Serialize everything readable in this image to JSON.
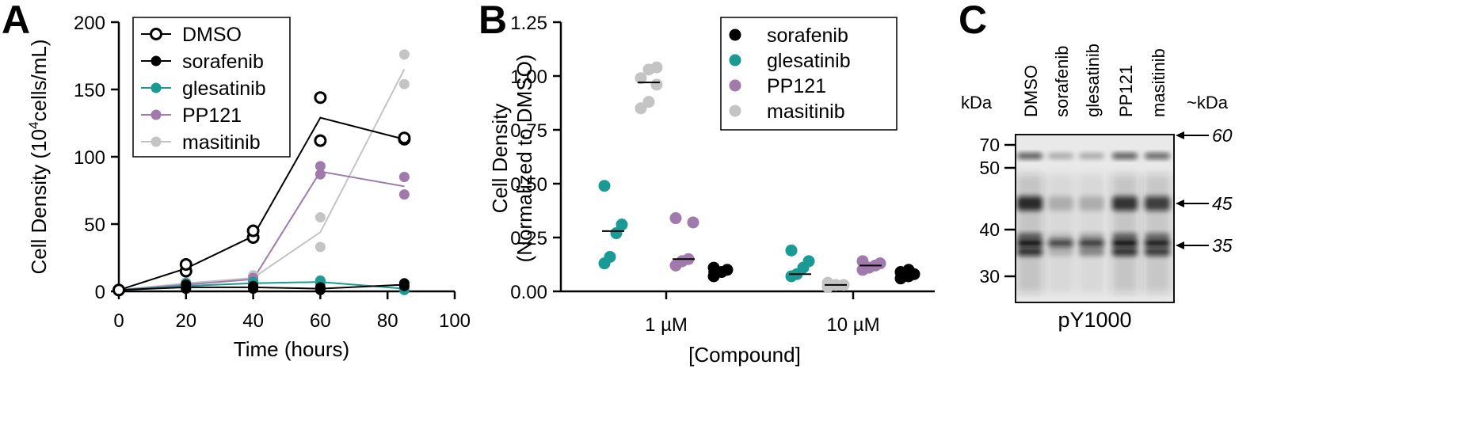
{
  "chart_data": [
    {
      "panel": "A",
      "type": "line",
      "xlabel": "Time (hours)",
      "ylabel_pre": "Cell Density (10",
      "ylabel_sup": "4",
      "ylabel_post": "cells/mL)",
      "xlim": [
        0,
        100
      ],
      "ylim": [
        0,
        200
      ],
      "xticks": [
        0,
        20,
        40,
        60,
        80,
        100
      ],
      "yticks": [
        0,
        50,
        100,
        150,
        200
      ],
      "legend_position": "top-left",
      "series": [
        {
          "name": "DMSO",
          "color": "#000000",
          "marker": "open-circle",
          "mean": [
            [
              0,
              1
            ],
            [
              20,
              17
            ],
            [
              40,
              41
            ],
            [
              60,
              129
            ],
            [
              85,
              113
            ]
          ],
          "points": [
            [
              0,
              1
            ],
            [
              20,
              15
            ],
            [
              20,
              20
            ],
            [
              40,
              40
            ],
            [
              40,
              45
            ],
            [
              60,
              112
            ],
            [
              60,
              144
            ],
            [
              85,
              113
            ],
            [
              85,
              114
            ]
          ]
        },
        {
          "name": "sorafenib",
          "color": "#000000",
          "marker": "filled-circle",
          "mean": [
            [
              0,
              1
            ],
            [
              20,
              3
            ],
            [
              40,
              3
            ],
            [
              60,
              2
            ],
            [
              85,
              5
            ]
          ],
          "points": [
            [
              0,
              1
            ],
            [
              20,
              2
            ],
            [
              20,
              5
            ],
            [
              40,
              2
            ],
            [
              40,
              4
            ],
            [
              60,
              1
            ],
            [
              60,
              3
            ],
            [
              85,
              4
            ],
            [
              85,
              6
            ]
          ]
        },
        {
          "name": "glesatinib",
          "color": "#1a9a95",
          "marker": "filled-circle",
          "mean": [
            [
              0,
              1
            ],
            [
              20,
              4
            ],
            [
              40,
              6
            ],
            [
              60,
              7
            ],
            [
              85,
              2
            ]
          ],
          "points": [
            [
              0,
              1
            ],
            [
              20,
              2
            ],
            [
              20,
              6
            ],
            [
              40,
              5
            ],
            [
              40,
              7
            ],
            [
              60,
              6
            ],
            [
              60,
              8
            ],
            [
              85,
              1
            ],
            [
              85,
              3
            ]
          ]
        },
        {
          "name": "PP121",
          "color": "#a07aac",
          "marker": "filled-circle",
          "mean": [
            [
              0,
              1
            ],
            [
              20,
              5
            ],
            [
              40,
              9
            ],
            [
              60,
              89
            ],
            [
              85,
              78
            ]
          ],
          "points": [
            [
              0,
              1
            ],
            [
              20,
              4
            ],
            [
              20,
              6
            ],
            [
              40,
              8
            ],
            [
              40,
              10
            ],
            [
              60,
              87
            ],
            [
              60,
              93
            ],
            [
              85,
              72
            ],
            [
              85,
              85
            ]
          ]
        },
        {
          "name": "masitinib",
          "color": "#c4c4c4",
          "marker": "filled-circle",
          "mean": [
            [
              0,
              1
            ],
            [
              20,
              6
            ],
            [
              40,
              10
            ],
            [
              60,
              44
            ],
            [
              85,
              165
            ]
          ],
          "points": [
            [
              0,
              1
            ],
            [
              20,
              5
            ],
            [
              20,
              7
            ],
            [
              40,
              8
            ],
            [
              40,
              12
            ],
            [
              60,
              33
            ],
            [
              60,
              55
            ],
            [
              85,
              154
            ],
            [
              85,
              176
            ]
          ]
        }
      ]
    },
    {
      "panel": "B",
      "type": "scatter",
      "xlabel": "[Compound]",
      "ylabel_line1": "Cell Density",
      "ylabel_line2": "(Normalized to DMSO)",
      "categories": [
        "1 µM",
        "10 µM"
      ],
      "ylim": [
        0,
        1.25
      ],
      "yticks": [
        "0.00",
        "0.25",
        "0.50",
        "0.75",
        "1.00",
        "1.25"
      ],
      "legend_position": "top-right",
      "series": [
        {
          "name": "sorafenib",
          "color": "#000000",
          "values": {
            "1 µM": [
              0.07,
              0.09,
              0.1,
              0.11
            ],
            "10 µM": [
              0.06,
              0.07,
              0.08,
              0.09,
              0.1
            ]
          },
          "means": {
            "1 µM": 0.09,
            "10 µM": 0.08
          }
        },
        {
          "name": "glesatinib",
          "color": "#1a9a95",
          "values": {
            "1 µM": [
              0.13,
              0.16,
              0.27,
              0.31,
              0.49
            ],
            "10 µM": [
              0.07,
              0.08,
              0.11,
              0.14,
              0.19
            ]
          },
          "means": {
            "1 µM": 0.28,
            "10 µM": 0.08
          }
        },
        {
          "name": "PP121",
          "color": "#a07aac",
          "values": {
            "1 µM": [
              0.12,
              0.14,
              0.15,
              0.32,
              0.34
            ],
            "10 µM": [
              0.1,
              0.11,
              0.12,
              0.13,
              0.14
            ]
          },
          "means": {
            "1 µM": 0.15,
            "10 µM": 0.12
          }
        },
        {
          "name": "masitinib",
          "color": "#c4c4c4",
          "values": {
            "1 µM": [
              0.85,
              0.88,
              0.96,
              0.99,
              1.03,
              1.04
            ],
            "10 µM": [
              0.02,
              0.03,
              0.03,
              0.04
            ]
          },
          "means": {
            "1 µM": 0.97,
            "10 µM": 0.03
          }
        }
      ]
    },
    {
      "panel": "C",
      "type": "other",
      "title": "pY1000",
      "lanes": [
        "DMSO",
        "sorafenib",
        "glesatinib",
        "PP121",
        "masitinib"
      ],
      "ladder_label": "kDa",
      "ladder_ticks": [
        70,
        50,
        40,
        30
      ],
      "arrow_label": "~kDa",
      "arrows": [
        60,
        45,
        35
      ],
      "lane_band_intensity": [
        {
          "lane": "DMSO",
          "bands": {
            "60": 0.75,
            "45": 0.85,
            "38": 0.6,
            "35": 1.0,
            "33": 0.85
          }
        },
        {
          "lane": "sorafenib",
          "bands": {
            "60": 0.3,
            "45": 0.2,
            "38": 0.15,
            "35": 0.75,
            "33": 0.2
          }
        },
        {
          "lane": "glesatinib",
          "bands": {
            "60": 0.3,
            "45": 0.2,
            "38": 0.25,
            "35": 0.8,
            "33": 0.4
          }
        },
        {
          "lane": "PP121",
          "bands": {
            "60": 0.75,
            "45": 0.8,
            "38": 0.55,
            "35": 1.0,
            "33": 0.85
          }
        },
        {
          "lane": "masitinib",
          "bands": {
            "60": 0.7,
            "45": 0.75,
            "38": 0.5,
            "35": 0.95,
            "33": 0.8
          }
        }
      ]
    }
  ],
  "panels": {
    "a": {
      "letter": "A"
    },
    "b": {
      "letter": "B"
    },
    "c": {
      "letter": "C"
    }
  },
  "colors": {
    "black": "#000000",
    "glesatinib": "#1a9a95",
    "pp121": "#a07aac",
    "masitinib": "#c4c4c4"
  }
}
